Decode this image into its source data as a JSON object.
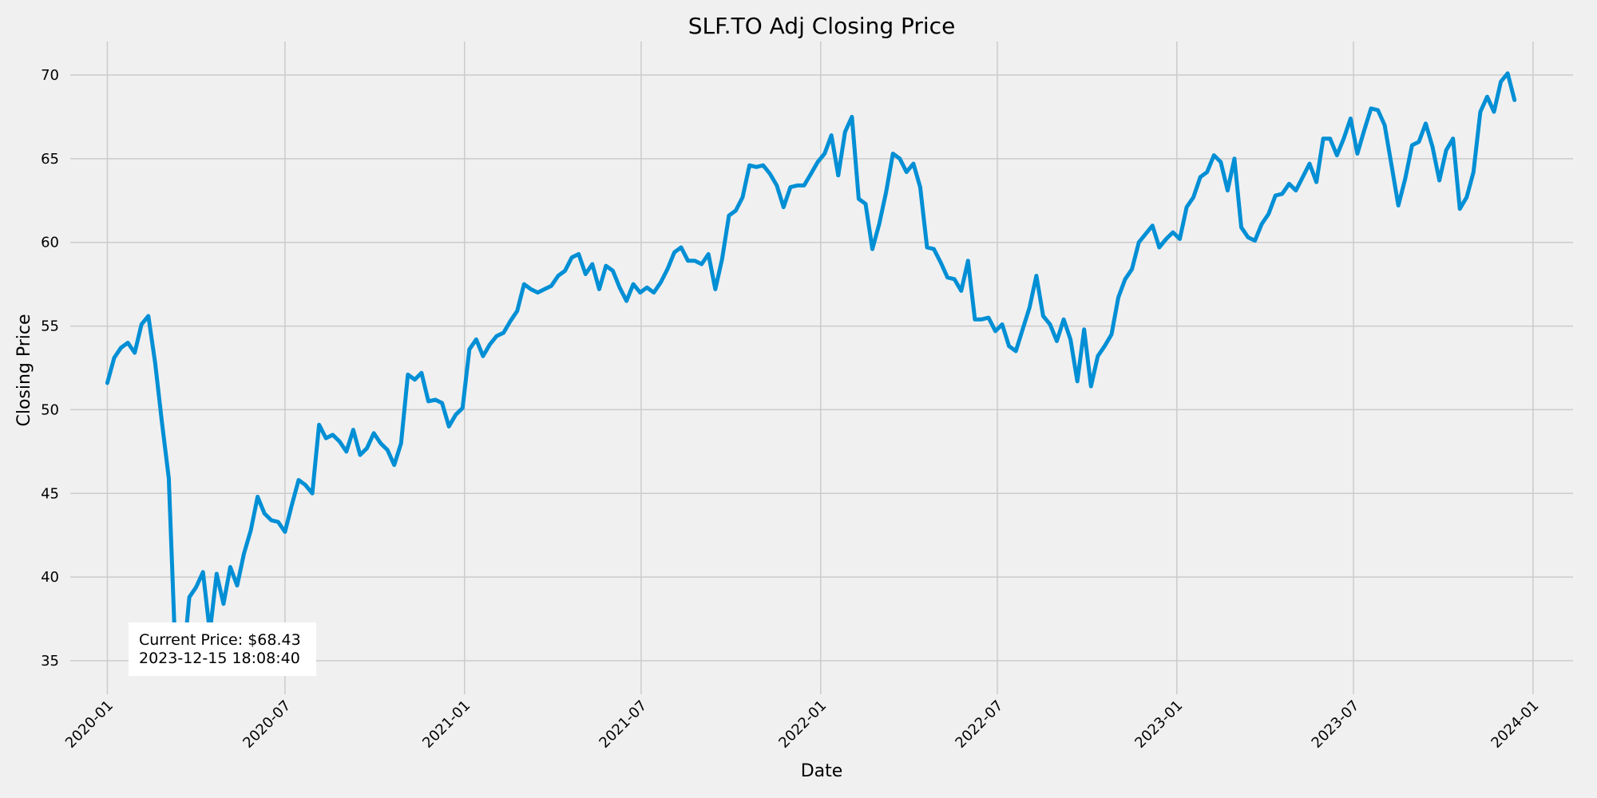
{
  "chart_data": {
    "type": "line",
    "title": "SLF.TO Adj Closing Price",
    "xlabel": "Date",
    "ylabel": "Closing Price",
    "ylim": [
      33,
      72
    ],
    "xlim": [
      "2019-11-24",
      "2024-02-11"
    ],
    "grid": true,
    "yticks": [
      35,
      40,
      45,
      50,
      55,
      60,
      65,
      70
    ],
    "xticks": [
      "2020-01",
      "2020-07",
      "2021-01",
      "2021-07",
      "2022-01",
      "2022-07",
      "2023-01",
      "2023-07",
      "2024-01"
    ],
    "series_color": "#008fd5",
    "series": [
      {
        "x": [
          "2020-01-01",
          "2020-01-08",
          "2020-01-15",
          "2020-01-22",
          "2020-01-29",
          "2020-02-05",
          "2020-02-12",
          "2020-02-19",
          "2020-02-26",
          "2020-03-04",
          "2020-03-11",
          "2020-03-18",
          "2020-03-25",
          "2020-04-01",
          "2020-04-08",
          "2020-04-15",
          "2020-04-22",
          "2020-04-29",
          "2020-05-06",
          "2020-05-13",
          "2020-05-20",
          "2020-05-27",
          "2020-06-03",
          "2020-06-10",
          "2020-06-17",
          "2020-06-24",
          "2020-07-01",
          "2020-07-08",
          "2020-07-15",
          "2020-07-22",
          "2020-07-29",
          "2020-08-05",
          "2020-08-12",
          "2020-08-19",
          "2020-08-26",
          "2020-09-02",
          "2020-09-09",
          "2020-09-16",
          "2020-09-23",
          "2020-09-30",
          "2020-10-07",
          "2020-10-14",
          "2020-10-21",
          "2020-10-28",
          "2020-11-04",
          "2020-11-11",
          "2020-11-18",
          "2020-11-25",
          "2020-12-02",
          "2020-12-09",
          "2020-12-16",
          "2020-12-23",
          "2020-12-30",
          "2021-01-06",
          "2021-01-13",
          "2021-01-20",
          "2021-01-27",
          "2021-02-03",
          "2021-02-10",
          "2021-02-17",
          "2021-02-24",
          "2021-03-03",
          "2021-03-10",
          "2021-03-17",
          "2021-03-24",
          "2021-03-31",
          "2021-04-07",
          "2021-04-14",
          "2021-04-21",
          "2021-04-28",
          "2021-05-05",
          "2021-05-12",
          "2021-05-19",
          "2021-05-26",
          "2021-06-02",
          "2021-06-09",
          "2021-06-16",
          "2021-06-23",
          "2021-06-30",
          "2021-07-07",
          "2021-07-14",
          "2021-07-21",
          "2021-07-28",
          "2021-08-04",
          "2021-08-11",
          "2021-08-18",
          "2021-08-25",
          "2021-09-01",
          "2021-09-08",
          "2021-09-15",
          "2021-09-22",
          "2021-09-29",
          "2021-10-06",
          "2021-10-13",
          "2021-10-20",
          "2021-10-27",
          "2021-11-03",
          "2021-11-10",
          "2021-11-17",
          "2021-11-24",
          "2021-12-01",
          "2021-12-08",
          "2021-12-15",
          "2021-12-22",
          "2021-12-29",
          "2022-01-05",
          "2022-01-12",
          "2022-01-19",
          "2022-01-26",
          "2022-02-02",
          "2022-02-09",
          "2022-02-16",
          "2022-02-23",
          "2022-03-02",
          "2022-03-09",
          "2022-03-16",
          "2022-03-23",
          "2022-03-30",
          "2022-04-06",
          "2022-04-13",
          "2022-04-20",
          "2022-04-27",
          "2022-05-04",
          "2022-05-11",
          "2022-05-18",
          "2022-05-25",
          "2022-06-01",
          "2022-06-08",
          "2022-06-15",
          "2022-06-22",
          "2022-06-29",
          "2022-07-06",
          "2022-07-13",
          "2022-07-20",
          "2022-07-27",
          "2022-08-03",
          "2022-08-10",
          "2022-08-17",
          "2022-08-24",
          "2022-08-31",
          "2022-09-07",
          "2022-09-14",
          "2022-09-21",
          "2022-09-28",
          "2022-10-05",
          "2022-10-12",
          "2022-10-19",
          "2022-10-26",
          "2022-11-02",
          "2022-11-09",
          "2022-11-16",
          "2022-11-23",
          "2022-11-30",
          "2022-12-07",
          "2022-12-14",
          "2022-12-21",
          "2022-12-28",
          "2023-01-04",
          "2023-01-11",
          "2023-01-18",
          "2023-01-25",
          "2023-02-01",
          "2023-02-08",
          "2023-02-15",
          "2023-02-22",
          "2023-03-01",
          "2023-03-08",
          "2023-03-15",
          "2023-03-22",
          "2023-03-29",
          "2023-04-05",
          "2023-04-12",
          "2023-04-19",
          "2023-04-26",
          "2023-05-03",
          "2023-05-10",
          "2023-05-17",
          "2023-05-24",
          "2023-05-31",
          "2023-06-07",
          "2023-06-14",
          "2023-06-21",
          "2023-06-28",
          "2023-07-05",
          "2023-07-12",
          "2023-07-19",
          "2023-07-26",
          "2023-08-02",
          "2023-08-09",
          "2023-08-16",
          "2023-08-23",
          "2023-08-30",
          "2023-09-06",
          "2023-09-13",
          "2023-09-20",
          "2023-09-27",
          "2023-10-04",
          "2023-10-11",
          "2023-10-18",
          "2023-10-25",
          "2023-11-01",
          "2023-11-08",
          "2023-11-15",
          "2023-11-22",
          "2023-11-29",
          "2023-12-06",
          "2023-12-13"
        ],
        "y": [
          51.6,
          53.1,
          53.7,
          54.0,
          53.4,
          55.1,
          55.6,
          52.8,
          49.2,
          45.9,
          35.0,
          34.4,
          38.8,
          39.4,
          40.3,
          36.7,
          40.2,
          38.4,
          40.6,
          39.5,
          41.4,
          42.8,
          44.8,
          43.8,
          43.4,
          43.3,
          42.7,
          44.3,
          45.8,
          45.5,
          45.0,
          49.1,
          48.3,
          48.5,
          48.1,
          47.5,
          48.8,
          47.3,
          47.7,
          48.6,
          48.0,
          47.6,
          46.7,
          48.0,
          52.1,
          51.8,
          52.2,
          50.5,
          50.6,
          50.4,
          49.0,
          49.7,
          50.1,
          53.6,
          54.2,
          53.2,
          53.9,
          54.4,
          54.6,
          55.3,
          55.9,
          57.5,
          57.2,
          57.0,
          57.2,
          57.4,
          58.0,
          58.3,
          59.1,
          59.3,
          58.1,
          58.7,
          57.2,
          58.6,
          58.3,
          57.3,
          56.5,
          57.5,
          57.0,
          57.3,
          57.0,
          57.6,
          58.4,
          59.4,
          59.7,
          58.9,
          58.9,
          58.7,
          59.3,
          57.2,
          59.0,
          61.6,
          61.9,
          62.7,
          64.6,
          64.5,
          64.6,
          64.1,
          63.4,
          62.1,
          63.3,
          63.4,
          63.4,
          64.1,
          64.8,
          65.3,
          66.4,
          64.0,
          66.6,
          67.5,
          62.6,
          62.3,
          59.6,
          61.1,
          63.0,
          65.3,
          65.0,
          64.2,
          64.7,
          63.3,
          59.7,
          59.6,
          58.8,
          57.9,
          57.8,
          57.1,
          58.9,
          55.4,
          55.4,
          55.5,
          54.7,
          55.1,
          53.8,
          53.5,
          54.8,
          56.1,
          58.0,
          55.6,
          55.1,
          54.1,
          55.4,
          54.2,
          51.7,
          54.8,
          51.4,
          53.2,
          53.8,
          54.5,
          56.7,
          57.8,
          58.4,
          60.0,
          60.5,
          61.0,
          59.7,
          60.2,
          60.6,
          60.2,
          62.1,
          62.7,
          63.9,
          64.2,
          65.2,
          64.8,
          63.1,
          65.0,
          60.9,
          60.3,
          60.1,
          61.1,
          61.7,
          62.8,
          62.9,
          63.5,
          63.1,
          63.9,
          64.7,
          63.6,
          66.2,
          66.2,
          65.2,
          66.2,
          67.4,
          65.3,
          66.7,
          68.0,
          67.9,
          67.0,
          64.6,
          62.2,
          63.8,
          65.8,
          66.0,
          67.1,
          65.7,
          63.7,
          65.5,
          66.2,
          62.0,
          62.7,
          64.2,
          67.8,
          68.7,
          67.8,
          69.6,
          70.1,
          68.5
        ]
      }
    ],
    "annotation": {
      "line1": "Current Price: $68.43",
      "line2": "2023-12-15 18:08:40"
    }
  }
}
